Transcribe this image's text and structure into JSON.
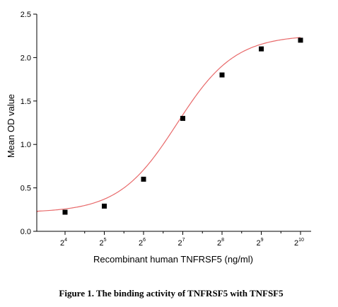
{
  "chart_data": {
    "type": "scatter",
    "caption": "Figure 1. The binding activity of TNFRSF5 with TNFSF5",
    "xlabel": "Recombinant human TNFRSF5 (ng/ml)",
    "ylabel": "Mean OD value",
    "x_scale": "log2",
    "xlim": [
      4,
      10.3
    ],
    "ylim": [
      0,
      2.5
    ],
    "x_ticks": [
      {
        "base": "2",
        "exp": "4",
        "value": 16
      },
      {
        "base": "2",
        "exp": "5",
        "value": 32
      },
      {
        "base": "2",
        "exp": "6",
        "value": 64
      },
      {
        "base": "2",
        "exp": "7",
        "value": 128
      },
      {
        "base": "2",
        "exp": "8",
        "value": 256
      },
      {
        "base": "2",
        "exp": "9",
        "value": 512
      },
      {
        "base": "2",
        "exp": "10",
        "value": 1024
      }
    ],
    "y_ticks": [
      "0.0",
      "0.5",
      "1.0",
      "1.5",
      "2.0",
      "2.5"
    ],
    "series": [
      {
        "x": [
          16,
          32,
          64,
          128,
          256,
          512,
          1024
        ],
        "y": [
          0.22,
          0.29,
          0.6,
          1.3,
          1.8,
          2.1,
          2.2
        ],
        "marker": "square",
        "marker_color": "#000000"
      }
    ],
    "fit_curve": {
      "type": "4PL",
      "min": 0.215,
      "max": 2.26,
      "ec50_log2": 6.85,
      "slope_log2": 1.35,
      "color": "#e8696a"
    },
    "grid": false
  }
}
